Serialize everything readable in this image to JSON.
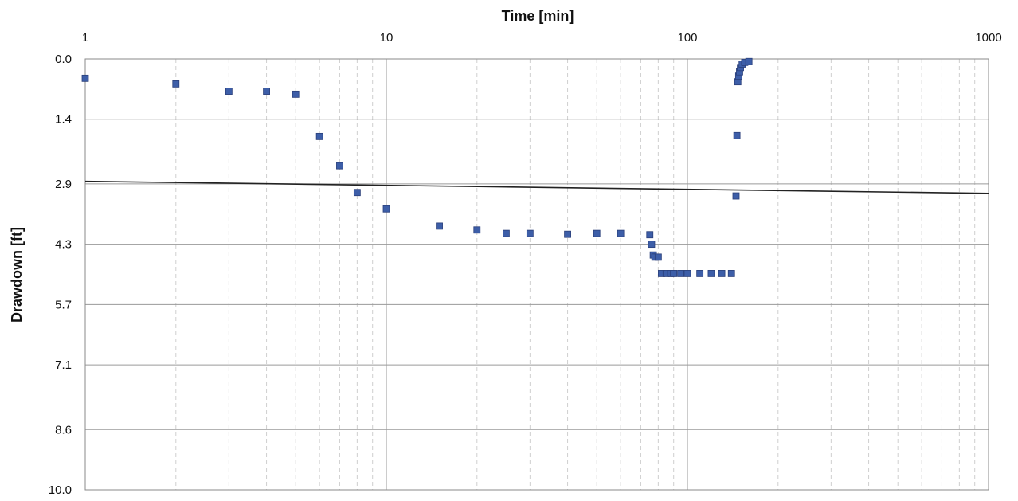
{
  "chart_data": {
    "type": "scatter",
    "title": "",
    "xlabel": "Time [min]",
    "ylabel": "Drawdown [ft]",
    "x_axis_position": "top",
    "x_scale": "log",
    "xlim": [
      1,
      1000
    ],
    "ylim": [
      0.0,
      10.0
    ],
    "y_inverted": true,
    "x_tick_labels": [
      "1",
      "10",
      "100",
      "1000"
    ],
    "y_tick_labels": [
      "0.0",
      "1.4",
      "2.9",
      "4.3",
      "5.7",
      "7.1",
      "8.6",
      "10.0"
    ],
    "grid": true,
    "legend": "none",
    "colors": {
      "marker": "#3d5ea8",
      "marker_edge": "#2a3f7a",
      "trend_line": "#222222",
      "grid_major": "#9a9a9a",
      "grid_minor": "#cfcfcf"
    },
    "series": [
      {
        "x": [
          1,
          2,
          3,
          4,
          5,
          6,
          7,
          8,
          10,
          15,
          20,
          25,
          30,
          40,
          50,
          60,
          75,
          76,
          77,
          78,
          80,
          82,
          85,
          88,
          90,
          95,
          100,
          110,
          120,
          130,
          140,
          145,
          146,
          147,
          148,
          149,
          150,
          152,
          155,
          160
        ],
        "y": [
          0.45,
          0.58,
          0.75,
          0.75,
          0.82,
          1.8,
          2.48,
          3.1,
          3.48,
          3.88,
          3.97,
          4.05,
          4.05,
          4.07,
          4.05,
          4.05,
          4.08,
          4.3,
          4.55,
          4.6,
          4.6,
          4.98,
          4.98,
          4.98,
          4.98,
          4.98,
          4.98,
          4.98,
          4.98,
          4.98,
          4.98,
          3.18,
          1.78,
          0.53,
          0.4,
          0.3,
          0.2,
          0.12,
          0.08,
          0.06
        ]
      }
    ],
    "trend_line": {
      "x": [
        1,
        1000
      ],
      "y": [
        2.84,
        3.12
      ]
    }
  }
}
